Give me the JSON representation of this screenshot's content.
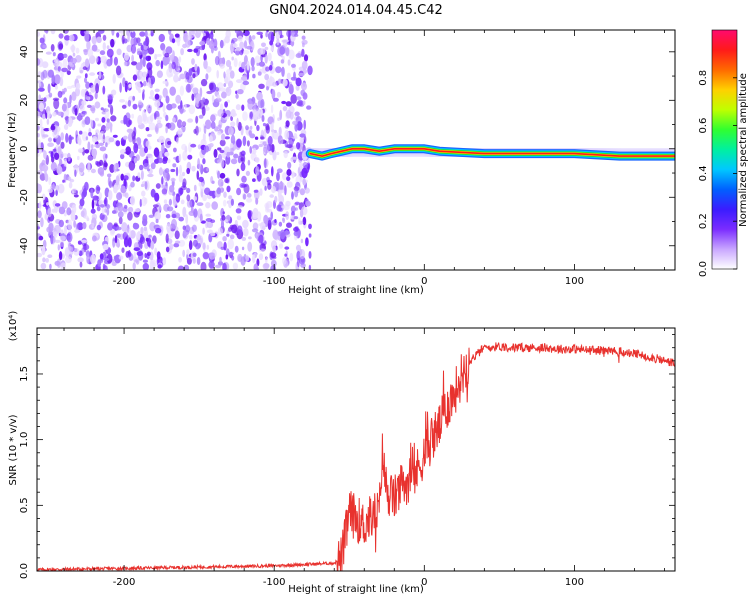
{
  "title": "GN04.2024.014.04.45.C42",
  "chart_data": [
    {
      "type": "heatmap",
      "xlabel": "Height of straight line (km)",
      "ylabel": "Frequency (Hz)",
      "xlim": [
        -258,
        167
      ],
      "ylim": [
        -50,
        49
      ],
      "xticks": [
        -200,
        -100,
        0,
        100
      ],
      "yticks": [
        -40,
        -20,
        0,
        20,
        40
      ],
      "noise_region_x": [
        -258,
        -76
      ],
      "tracking_line": [
        {
          "x": -76,
          "y": -2
        },
        {
          "x": -68,
          "y": -3
        },
        {
          "x": -62,
          "y": -2
        },
        {
          "x": -55,
          "y": -1
        },
        {
          "x": -48,
          "y": 0
        },
        {
          "x": -40,
          "y": 0
        },
        {
          "x": -30,
          "y": -1
        },
        {
          "x": -20,
          "y": 0
        },
        {
          "x": 0,
          "y": 0
        },
        {
          "x": 10,
          "y": -1
        },
        {
          "x": 40,
          "y": -2
        },
        {
          "x": 100,
          "y": -2
        },
        {
          "x": 130,
          "y": -3
        },
        {
          "x": 167,
          "y": -3
        }
      ],
      "colorbar": {
        "label": "Normalized spectral amplitude",
        "range": [
          0.0,
          1.0
        ],
        "ticks": [
          0.0,
          0.2,
          0.4,
          0.6,
          0.8
        ],
        "colors": [
          "#ffffff",
          "#c9a6ff",
          "#7a2cff",
          "#3a1cff",
          "#0060ff",
          "#00c8ff",
          "#00f0a0",
          "#30ff30",
          "#c0ff00",
          "#ffd000",
          "#ff6a00",
          "#ff1a1a",
          "#ff0a6e"
        ]
      },
      "colors": {
        "noise": "#7b2bff",
        "line_core": "#ff1a1a",
        "line_mid": "#18e828",
        "line_outer": "#1b66ff",
        "line_halo": "#b39cff",
        "ridge": "#e94040"
      }
    },
    {
      "type": "line",
      "xlabel": "Height of straight line (km)",
      "ylabel": "SNR (10 * v/v)",
      "y_scale_note": "(x10⁴)",
      "xlim": [
        -258,
        167
      ],
      "ylim": [
        0,
        1.85
      ],
      "xticks": [
        -200,
        -100,
        0,
        100
      ],
      "yticks": [
        0.0,
        0.5,
        1.0,
        1.5
      ],
      "ytick_labels": [
        "0.0",
        "0.5",
        "1.0",
        "1.5"
      ],
      "series": [
        {
          "color": "#e8322e",
          "x": [
            -258,
            -200,
            -150,
            -100,
            -60,
            -55,
            -52,
            -50,
            -45,
            -40,
            -35,
            -30,
            -28,
            -25,
            -20,
            -15,
            -10,
            -5,
            0,
            5,
            10,
            15,
            20,
            25,
            30,
            35,
            40,
            50,
            60,
            70,
            80,
            90,
            100,
            110,
            120,
            130,
            140,
            150,
            160,
            167
          ],
          "y": [
            0.01,
            0.02,
            0.03,
            0.04,
            0.06,
            0.1,
            0.3,
            0.45,
            0.4,
            0.35,
            0.42,
            0.45,
            0.9,
            0.6,
            0.55,
            0.65,
            0.7,
            0.75,
            0.9,
            1.0,
            1.1,
            1.25,
            1.35,
            1.5,
            1.6,
            1.65,
            1.7,
            1.71,
            1.7,
            1.7,
            1.7,
            1.69,
            1.69,
            1.68,
            1.68,
            1.67,
            1.65,
            1.63,
            1.6,
            1.58
          ]
        }
      ]
    }
  ]
}
